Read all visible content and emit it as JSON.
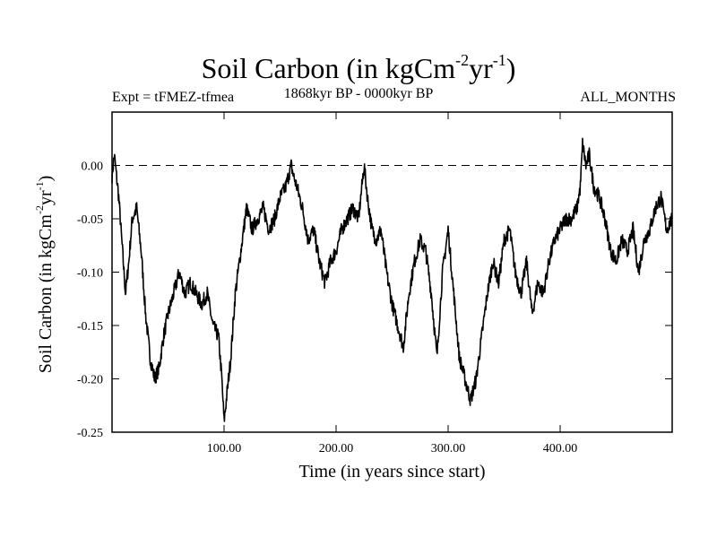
{
  "chart_data": {
    "type": "line",
    "title": {
      "main": "Soil Carbon (in kgCm",
      "sup1": "-2",
      "mid": "yr",
      "sup2": "-1",
      "end": ")"
    },
    "subtitle_left": "Expt = tFMEZ-tfmea",
    "subtitle_center": "1868kyr BP - 0000kyr BP",
    "subtitle_right": "ALL_MONTHS",
    "xlabel": "Time (in years since start)",
    "ylabel": {
      "main": "Soil Carbon (in kgCm",
      "sup1": "-2",
      "mid": "yr",
      "sup2": "-1",
      "end": ")"
    },
    "xlim": [
      0,
      500
    ],
    "ylim": [
      -0.25,
      0.05
    ],
    "xticks": [
      100,
      200,
      300,
      400
    ],
    "xtick_labels": [
      "100.00",
      "200.00",
      "300.00",
      "400.00"
    ],
    "yticks": [
      0.0,
      -0.05,
      -0.1,
      -0.15,
      -0.2,
      -0.25
    ],
    "ytick_labels": [
      "0.00",
      "-0.05",
      "-0.10",
      "-0.15",
      "-0.20",
      "-0.25"
    ],
    "reference_line": 0.0,
    "series": [
      {
        "name": "Soil Carbon",
        "color": "#000000",
        "x": [
          0,
          2,
          4,
          6,
          8,
          10,
          12,
          15,
          18,
          22,
          26,
          30,
          34,
          38,
          42,
          46,
          50,
          55,
          60,
          65,
          70,
          75,
          80,
          85,
          90,
          95,
          98,
          100,
          102,
          106,
          110,
          115,
          120,
          125,
          130,
          135,
          140,
          145,
          150,
          155,
          160,
          162,
          165,
          170,
          175,
          180,
          185,
          190,
          195,
          200,
          205,
          210,
          215,
          220,
          225,
          228,
          232,
          236,
          240,
          245,
          250,
          255,
          260,
          265,
          270,
          275,
          280,
          285,
          290,
          295,
          300,
          305,
          310,
          315,
          320,
          325,
          330,
          335,
          340,
          345,
          350,
          355,
          360,
          365,
          370,
          375,
          380,
          385,
          390,
          395,
          400,
          405,
          410,
          415,
          418,
          420,
          423,
          426,
          430,
          435,
          440,
          445,
          450,
          455,
          460,
          465,
          470,
          475,
          480,
          485,
          490,
          495,
          500
        ],
        "values": [
          -0.01,
          0.01,
          -0.01,
          -0.03,
          -0.06,
          -0.09,
          -0.12,
          -0.09,
          -0.05,
          -0.04,
          -0.08,
          -0.14,
          -0.18,
          -0.2,
          -0.19,
          -0.16,
          -0.14,
          -0.12,
          -0.1,
          -0.12,
          -0.11,
          -0.12,
          -0.13,
          -0.12,
          -0.15,
          -0.16,
          -0.2,
          -0.24,
          -0.22,
          -0.18,
          -0.12,
          -0.08,
          -0.04,
          -0.06,
          -0.05,
          -0.04,
          -0.06,
          -0.05,
          -0.03,
          -0.02,
          0.0,
          -0.01,
          -0.02,
          -0.04,
          -0.07,
          -0.06,
          -0.09,
          -0.11,
          -0.09,
          -0.08,
          -0.06,
          -0.05,
          -0.04,
          -0.05,
          0.0,
          -0.03,
          -0.06,
          -0.07,
          -0.06,
          -0.1,
          -0.13,
          -0.15,
          -0.17,
          -0.12,
          -0.09,
          -0.07,
          -0.08,
          -0.12,
          -0.18,
          -0.1,
          -0.06,
          -0.12,
          -0.18,
          -0.2,
          -0.22,
          -0.2,
          -0.16,
          -0.12,
          -0.09,
          -0.11,
          -0.07,
          -0.06,
          -0.1,
          -0.12,
          -0.09,
          -0.14,
          -0.11,
          -0.12,
          -0.09,
          -0.07,
          -0.06,
          -0.05,
          -0.05,
          -0.04,
          -0.02,
          0.02,
          0.0,
          0.01,
          -0.02,
          -0.03,
          -0.05,
          -0.08,
          -0.09,
          -0.07,
          -0.08,
          -0.06,
          -0.1,
          -0.07,
          -0.06,
          -0.04,
          -0.03,
          -0.06,
          -0.05
        ]
      }
    ]
  }
}
